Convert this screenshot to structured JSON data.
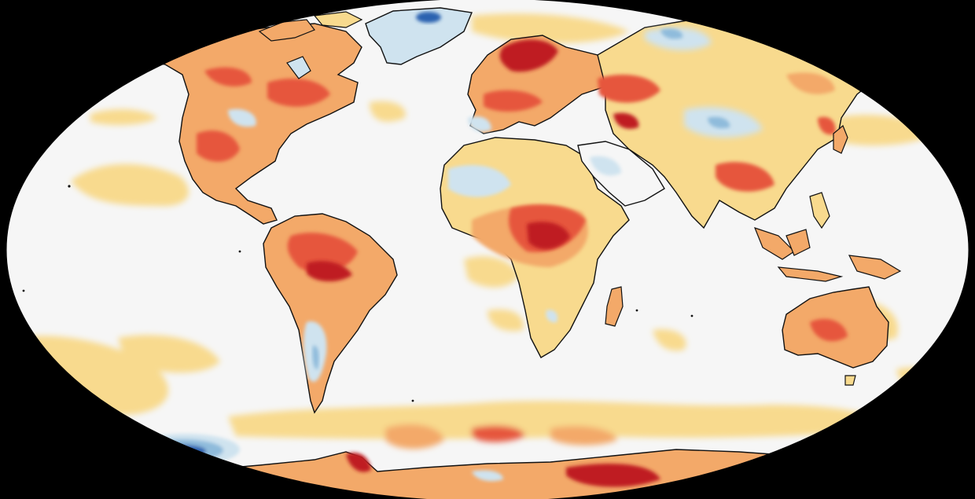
{
  "map": {
    "type": "temperature-anomaly-map",
    "projection": "robinson",
    "colors": {
      "background": "#000000",
      "ocean_neutral": "#f6f6f6",
      "warm_1": "#f8da8e",
      "warm_2": "#f3a969",
      "warm_3": "#e6573c",
      "warm_4": "#bf1d23",
      "cool_1": "#cfe3ef",
      "cool_2": "#8fbbdb",
      "cool_3": "#2b62b0",
      "coast": "#111111"
    }
  }
}
